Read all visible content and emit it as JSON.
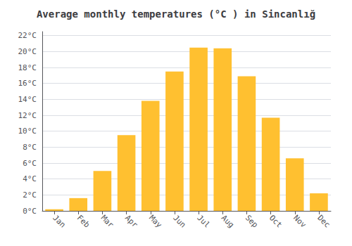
{
  "chart_data": {
    "type": "bar",
    "title": "Average monthly temperatures (°C ) in Sincanlığ",
    "categories": [
      "Jan",
      "Feb",
      "Mar",
      "Apr",
      "May",
      "Jun",
      "Jul",
      "Aug",
      "Sep",
      "Oct",
      "Nov",
      "Dec"
    ],
    "values": [
      0.2,
      1.6,
      5.0,
      9.5,
      13.8,
      17.5,
      20.5,
      20.4,
      16.9,
      11.7,
      6.6,
      2.2
    ],
    "color": "#FFC030",
    "ylim": [
      0,
      22.5
    ],
    "yticks": [
      {
        "value": 0,
        "label": "0°C"
      },
      {
        "value": 2,
        "label": "2°C"
      },
      {
        "value": 4,
        "label": "4°C"
      },
      {
        "value": 6,
        "label": "6°C"
      },
      {
        "value": 8,
        "label": "8°C"
      },
      {
        "value": 10,
        "label": "10°C"
      },
      {
        "value": 12,
        "label": "12°C"
      },
      {
        "value": 14,
        "label": "14°C"
      },
      {
        "value": 16,
        "label": "16°C"
      },
      {
        "value": 18,
        "label": "18°C"
      },
      {
        "value": 20,
        "label": "20°C"
      },
      {
        "value": 22,
        "label": "22°C"
      }
    ],
    "grid": true
  }
}
